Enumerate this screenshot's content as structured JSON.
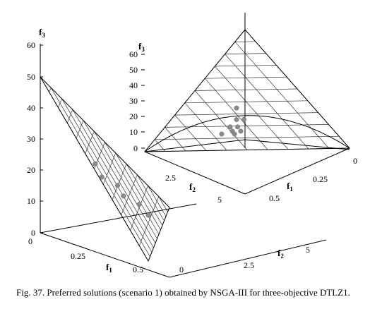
{
  "chart_data": [
    {
      "type": "scatter",
      "view": "3d-side",
      "axes": {
        "f1": {
          "label": "f",
          "sub": "1",
          "ticks": [
            "0",
            "0.25",
            "0.5"
          ]
        },
        "f2": {
          "label": "f",
          "sub": "2",
          "ticks": [
            "0",
            "2.5",
            "5"
          ]
        },
        "f3": {
          "label": "f",
          "sub": "3",
          "ticks": [
            "0",
            "10",
            "20",
            "30",
            "40",
            "50",
            "60"
          ],
          "ylim": [
            0,
            60
          ]
        }
      },
      "surface": "mesh",
      "points": [
        {
          "f1": 0.18,
          "f2": 1.2,
          "f3": 25
        },
        {
          "f1": 0.2,
          "f2": 1.4,
          "f3": 21
        },
        {
          "f1": 0.25,
          "f2": 1.8,
          "f3": 19
        },
        {
          "f1": 0.27,
          "f2": 1.9,
          "f3": 16
        },
        {
          "f1": 0.32,
          "f2": 2.3,
          "f3": 14
        },
        {
          "f1": 0.35,
          "f2": 2.5,
          "f3": 11
        }
      ]
    },
    {
      "type": "scatter",
      "view": "3d-top",
      "axes": {
        "f1": {
          "label": "f",
          "sub": "1",
          "ticks": [
            "0",
            "0.25",
            "0.5"
          ]
        },
        "f2": {
          "label": "f",
          "sub": "2",
          "ticks": [
            "2.5",
            "5"
          ]
        },
        "f3": {
          "label": "f",
          "sub": "3",
          "ticks": [
            "0",
            "10",
            "20",
            "30",
            "40",
            "50",
            "60"
          ],
          "ylim": [
            0,
            60
          ]
        }
      },
      "surface": "mesh",
      "points": [
        {
          "f1": 0.1,
          "f2": 0.9,
          "f3": 40
        },
        {
          "f1": 0.12,
          "f2": 1.0,
          "f3": 32
        },
        {
          "f1": 0.15,
          "f2": 0.8,
          "f3": 32
        },
        {
          "f1": 0.12,
          "f2": 1.3,
          "f3": 27
        },
        {
          "f1": 0.15,
          "f2": 1.1,
          "f3": 27
        },
        {
          "f1": 0.18,
          "f2": 1.5,
          "f3": 24
        },
        {
          "f1": 0.2,
          "f2": 1.2,
          "f3": 24
        },
        {
          "f1": 0.14,
          "f2": 1.8,
          "f3": 22
        },
        {
          "f1": 0.22,
          "f2": 1.6,
          "f3": 22
        }
      ]
    }
  ],
  "caption": "Fig. 37. Preferred solutions (scenario 1) obtained by NSGA-III for three-objective DTLZ1."
}
